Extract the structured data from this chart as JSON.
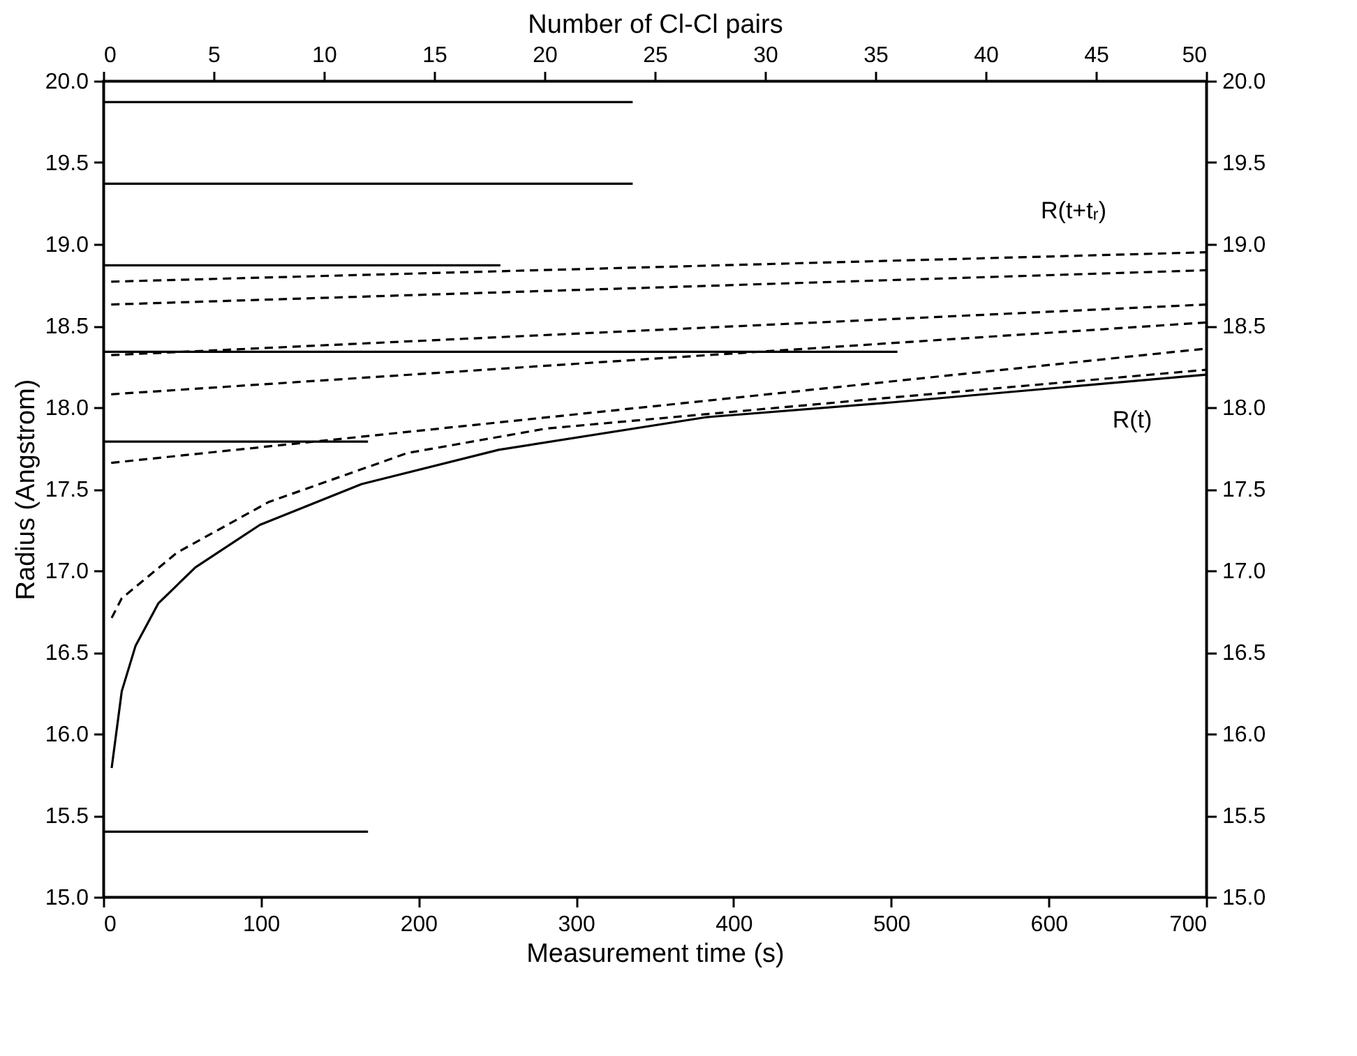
{
  "chart_data": {
    "type": "line",
    "xlabel": "Measurement time (s)",
    "x2label": "Number of Cl-Cl pairs",
    "ylabel": "Radius (Angstrom)",
    "xlim": [
      0,
      700
    ],
    "xticks": [
      0,
      100,
      200,
      300,
      400,
      500,
      600,
      700
    ],
    "x2lim": [
      0,
      50
    ],
    "x2ticks": [
      0,
      5,
      10,
      15,
      20,
      25,
      30,
      35,
      40,
      45,
      50
    ],
    "ylim": [
      15,
      20
    ],
    "yticks": [
      {
        "value": 15,
        "label": "15.0"
      },
      {
        "value": 15.5,
        "label": "15.5"
      },
      {
        "value": 16,
        "label": "16.0"
      },
      {
        "value": 16.5,
        "label": "16.5"
      },
      {
        "value": 17,
        "label": "17.0"
      },
      {
        "value": 17.5,
        "label": "17.5"
      },
      {
        "value": 18,
        "label": "18.0"
      },
      {
        "value": 18.5,
        "label": "18.5"
      },
      {
        "value": 19,
        "label": "19.0"
      },
      {
        "value": 19.5,
        "label": "19.5"
      },
      {
        "value": 20,
        "label": "20.0"
      }
    ],
    "y2lim": [
      15,
      20
    ],
    "y2ticks": [
      {
        "value": 15,
        "label": "15.0"
      },
      {
        "value": 15.5,
        "label": "15.5"
      },
      {
        "value": 16,
        "label": "16.0"
      },
      {
        "value": 16.5,
        "label": "16.5"
      },
      {
        "value": 17,
        "label": "17.0"
      },
      {
        "value": 17.5,
        "label": "17.5"
      },
      {
        "value": 18,
        "label": "18.0"
      },
      {
        "value": 18.5,
        "label": "18.5"
      },
      {
        "value": 19,
        "label": "19.0"
      },
      {
        "value": 19.5,
        "label": "19.5"
      },
      {
        "value": 20,
        "label": "20.0"
      }
    ],
    "grid": false,
    "marker": "none",
    "series": [
      {
        "color": "#000000",
        "line_style": "solid",
        "x": [
          5.3,
          11.7,
          20.5,
          35,
          58.5,
          99.4,
          164,
          251,
          383,
          500,
          700
        ],
        "values": [
          15.79,
          16.26,
          16.54,
          16.8,
          17.02,
          17.28,
          17.53,
          17.74,
          17.94,
          18.03,
          18.2
        ]
      },
      {
        "color": "#000000",
        "line_style": "dashed",
        "x": [
          5.3,
          11.7,
          46.8,
          105,
          193,
          281,
          500,
          700
        ],
        "values": [
          16.71,
          16.83,
          17.11,
          17.42,
          17.72,
          17.87,
          18.06,
          18.23
        ]
      },
      {
        "color": "#000000",
        "line_style": "dashed",
        "x": [
          5,
          700
        ],
        "values": [
          17.66,
          18.36
        ]
      },
      {
        "color": "#000000",
        "line_style": "dashed",
        "x": [
          5,
          700
        ],
        "values": [
          18.08,
          18.52
        ]
      },
      {
        "color": "#000000",
        "line_style": "dashed",
        "x": [
          5,
          700
        ],
        "values": [
          18.32,
          18.63
        ]
      },
      {
        "color": "#000000",
        "line_style": "dashed",
        "x": [
          5,
          700
        ],
        "values": [
          18.63,
          18.84
        ]
      },
      {
        "color": "#000000",
        "line_style": "dashed",
        "x": [
          5,
          700
        ],
        "values": [
          18.77,
          18.95
        ]
      },
      {
        "color": "#000000",
        "line_style": "solid",
        "axis": "x2",
        "x": [
          0,
          24
        ],
        "values": [
          19.87,
          19.87
        ]
      },
      {
        "color": "#000000",
        "line_style": "solid",
        "axis": "x2",
        "x": [
          0,
          24
        ],
        "values": [
          19.37,
          19.37
        ]
      },
      {
        "color": "#000000",
        "line_style": "solid",
        "axis": "x2",
        "x": [
          0,
          18
        ],
        "values": [
          18.87,
          18.87
        ]
      },
      {
        "color": "#000000",
        "line_style": "solid",
        "axis": "x2",
        "x": [
          0,
          36
        ],
        "values": [
          18.34,
          18.34
        ]
      },
      {
        "color": "#000000",
        "line_style": "solid",
        "axis": "x2",
        "x": [
          0,
          12
        ],
        "values": [
          17.79,
          17.79
        ]
      },
      {
        "color": "#000000",
        "line_style": "solid",
        "axis": "x2",
        "x": [
          0,
          12
        ],
        "values": [
          15.4,
          15.4
        ]
      }
    ],
    "annotations": [
      "R(t+tᵣ)",
      "R(t)"
    ]
  }
}
